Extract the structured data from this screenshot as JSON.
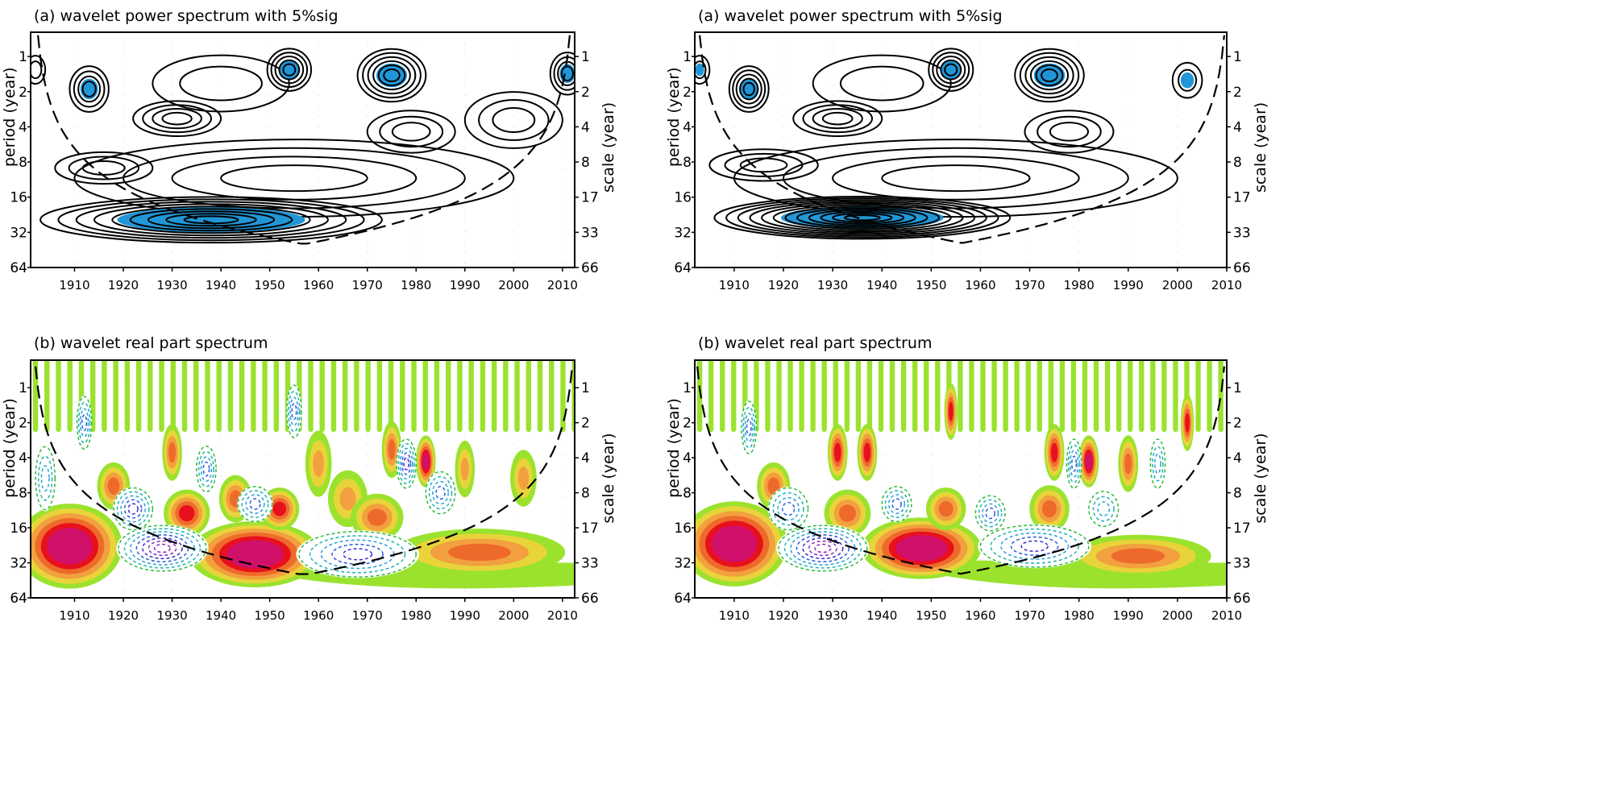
{
  "colors": {
    "significant": "#2196d6",
    "positive_levels": [
      "#9be22e",
      "#e8d43a",
      "#f2a040",
      "#ee6a2a",
      "#e8101c",
      "#d0106a"
    ],
    "negative_levels": [
      "#2dbb3a",
      "#1fb4b0",
      "#2aa0d8",
      "#2a5ae0",
      "#3a2ad0",
      "#8a2ac0"
    ],
    "contour": "#000000"
  },
  "chart_data": [
    {
      "id": "left-a",
      "type": "contour",
      "title": "(a) wavelet power spectrum with 5%sig",
      "ylabel": "period (year)",
      "ylabel_right": "scale (year)",
      "xlim": [
        1901,
        2012.5
      ],
      "ylim": [
        0.62,
        64
      ],
      "yscale": "log2",
      "x_ticks": [
        "1910",
        "1920",
        "1930",
        "1940",
        "1950",
        "1960",
        "1970",
        "1980",
        "1990",
        "2000",
        "2010"
      ],
      "y_ticks_left": [
        {
          "v": 1,
          "label": "1"
        },
        {
          "v": 2,
          "label": "2"
        },
        {
          "v": 4,
          "label": "4"
        },
        {
          "v": 8,
          "label": "8"
        },
        {
          "v": 16,
          "label": "16"
        },
        {
          "v": 32,
          "label": "32"
        },
        {
          "v": 64,
          "label": "64"
        }
      ],
      "y_ticks_right": [
        {
          "v": 1,
          "label": "1"
        },
        {
          "v": 2,
          "label": "2"
        },
        {
          "v": 4,
          "label": "4"
        },
        {
          "v": 8,
          "label": "8"
        },
        {
          "v": 16,
          "label": "17"
        },
        {
          "v": 32,
          "label": "33"
        },
        {
          "v": 64,
          "label": "66"
        }
      ],
      "coi": {
        "start": 1902.5,
        "end": 2011.5,
        "factor": 0.73
      },
      "features": [
        {
          "year": 1902,
          "period": 1.3,
          "wy": 4,
          "oct": 0.8,
          "levels": 2,
          "sig": 0
        },
        {
          "year": 1913,
          "period": 1.9,
          "wy": 8,
          "oct": 1.3,
          "levels": 4,
          "sig": 1
        },
        {
          "year": 1931,
          "period": 3.4,
          "wy": 18,
          "oct": 1.0,
          "levels": 4,
          "sig": 0
        },
        {
          "year": 1940,
          "period": 1.7,
          "wy": 28,
          "oct": 1.6,
          "levels": 2,
          "sig": 0
        },
        {
          "year": 1954,
          "period": 1.3,
          "wy": 9,
          "oct": 1.2,
          "levels": 5,
          "sig": 1
        },
        {
          "year": 1975,
          "period": 1.45,
          "wy": 14,
          "oct": 1.5,
          "levels": 6,
          "sig": 1
        },
        {
          "year": 1979,
          "period": 4.4,
          "wy": 18,
          "oct": 1.2,
          "levels": 3,
          "sig": 0
        },
        {
          "year": 2000,
          "period": 3.5,
          "wy": 20,
          "oct": 1.6,
          "levels": 3,
          "sig": 0
        },
        {
          "year": 2011,
          "period": 1.4,
          "wy": 7,
          "oct": 1.2,
          "levels": 4,
          "sig": 1
        },
        {
          "year": 1916,
          "period": 9,
          "wy": 20,
          "oct": 0.9,
          "levels": 3,
          "sig": 0
        },
        {
          "year": 1955,
          "period": 11,
          "wy": 90,
          "oct": 2.2,
          "levels": 4,
          "sig": 0
        },
        {
          "year": 1938,
          "period": 25,
          "wy": 70,
          "oct": 1.3,
          "levels": 9,
          "sig": 1
        }
      ]
    },
    {
      "id": "right-a",
      "type": "contour",
      "title": "(a) wavelet power spectrum with 5%sig",
      "ylabel": "period (year)",
      "ylabel_right": "scale (year)",
      "xlim": [
        1902,
        2010
      ],
      "ylim": [
        0.62,
        64
      ],
      "yscale": "log2",
      "x_ticks": [
        "1910",
        "1920",
        "1930",
        "1940",
        "1950",
        "1960",
        "1970",
        "1980",
        "1990",
        "2000",
        "2010"
      ],
      "y_ticks_left": [
        {
          "v": 1,
          "label": "1"
        },
        {
          "v": 2,
          "label": "2"
        },
        {
          "v": 4,
          "label": "4"
        },
        {
          "v": 8,
          "label": "8"
        },
        {
          "v": 16,
          "label": "16"
        },
        {
          "v": 32,
          "label": "32"
        },
        {
          "v": 64,
          "label": "64"
        }
      ],
      "y_ticks_right": [
        {
          "v": 1,
          "label": "1"
        },
        {
          "v": 2,
          "label": "2"
        },
        {
          "v": 4,
          "label": "4"
        },
        {
          "v": 8,
          "label": "8"
        },
        {
          "v": 16,
          "label": "17"
        },
        {
          "v": 32,
          "label": "33"
        },
        {
          "v": 64,
          "label": "66"
        }
      ],
      "coi": {
        "start": 1903,
        "end": 2009.5,
        "factor": 0.73
      },
      "features": [
        {
          "year": 1903,
          "period": 1.3,
          "wy": 4,
          "oct": 0.8,
          "levels": 2,
          "sig": 1
        },
        {
          "year": 1913,
          "period": 1.9,
          "wy": 8,
          "oct": 1.3,
          "levels": 5,
          "sig": 1
        },
        {
          "year": 1931,
          "period": 3.4,
          "wy": 18,
          "oct": 1.0,
          "levels": 4,
          "sig": 0
        },
        {
          "year": 1940,
          "period": 1.7,
          "wy": 28,
          "oct": 1.6,
          "levels": 2,
          "sig": 0
        },
        {
          "year": 1954,
          "period": 1.3,
          "wy": 9,
          "oct": 1.2,
          "levels": 5,
          "sig": 1
        },
        {
          "year": 1974,
          "period": 1.45,
          "wy": 14,
          "oct": 1.5,
          "levels": 6,
          "sig": 1
        },
        {
          "year": 1978,
          "period": 4.4,
          "wy": 18,
          "oct": 1.2,
          "levels": 3,
          "sig": 0
        },
        {
          "year": 2002,
          "period": 1.6,
          "wy": 6,
          "oct": 1.0,
          "levels": 2,
          "sig": 1
        },
        {
          "year": 1916,
          "period": 8.5,
          "wy": 22,
          "oct": 0.9,
          "levels": 3,
          "sig": 0
        },
        {
          "year": 1955,
          "period": 11,
          "wy": 90,
          "oct": 2.2,
          "levels": 4,
          "sig": 0
        },
        {
          "year": 1936,
          "period": 24,
          "wy": 60,
          "oct": 1.2,
          "levels": 12,
          "sig": 1
        }
      ]
    },
    {
      "id": "left-b",
      "type": "contour-real",
      "title": "(b) wavelet real part spectrum",
      "ylabel": "period (year)",
      "ylabel_right": "scale (year)",
      "xlim": [
        1901,
        2012.5
      ],
      "ylim": [
        0.58,
        64
      ],
      "yscale": "log2",
      "x_ticks": [
        "1910",
        "1920",
        "1930",
        "1940",
        "1950",
        "1960",
        "1970",
        "1980",
        "1990",
        "2000",
        "2010"
      ],
      "y_ticks_left": [
        {
          "v": 1,
          "label": "1"
        },
        {
          "v": 2,
          "label": "2"
        },
        {
          "v": 4,
          "label": "4"
        },
        {
          "v": 8,
          "label": "8"
        },
        {
          "v": 16,
          "label": "16"
        },
        {
          "v": 32,
          "label": "32"
        },
        {
          "v": 64,
          "label": "64"
        }
      ],
      "y_ticks_right": [
        {
          "v": 1,
          "label": "1"
        },
        {
          "v": 2,
          "label": "2"
        },
        {
          "v": 4,
          "label": "4"
        },
        {
          "v": 8,
          "label": "8"
        },
        {
          "v": 16,
          "label": "17"
        },
        {
          "v": 32,
          "label": "33"
        },
        {
          "v": 64,
          "label": "66"
        }
      ],
      "coi": {
        "start": 1902,
        "end": 2012,
        "factor": 0.73
      },
      "fingers": {
        "start": 1902,
        "spacing": 2.35,
        "to_period": 2.4
      },
      "features": [
        {
          "year": 1909,
          "period": 23,
          "wy": 16,
          "oct": 1.8,
          "amp": 6
        },
        {
          "year": 1947,
          "period": 27,
          "wy": 20,
          "oct": 1.4,
          "amp": 6
        },
        {
          "year": 1933,
          "period": 12,
          "wy": 7,
          "oct": 1.0,
          "amp": 4
        },
        {
          "year": 1952,
          "period": 11,
          "wy": 6,
          "oct": 0.9,
          "amp": 4
        },
        {
          "year": 1918,
          "period": 7,
          "wy": 5,
          "oct": 1.0,
          "amp": 3
        },
        {
          "year": 1930,
          "period": 3.6,
          "wy": 3,
          "oct": 1.2,
          "amp": 3
        },
        {
          "year": 1982,
          "period": 4.3,
          "wy": 3,
          "oct": 1.1,
          "amp": 5
        },
        {
          "year": 1975,
          "period": 3.4,
          "wy": 3,
          "oct": 1.2,
          "amp": 3
        },
        {
          "year": 1960,
          "period": 4.5,
          "wy": 4,
          "oct": 1.4,
          "amp": 2
        },
        {
          "year": 1966,
          "period": 9,
          "wy": 6,
          "oct": 1.2,
          "amp": 2
        },
        {
          "year": 1943,
          "period": 9,
          "wy": 5,
          "oct": 1.0,
          "amp": 3
        },
        {
          "year": 1993,
          "period": 26,
          "wy": 26,
          "oct": 1.0,
          "amp": 3
        },
        {
          "year": 1972,
          "period": 13,
          "wy": 8,
          "oct": 1.0,
          "amp": 3
        },
        {
          "year": 2002,
          "period": 6,
          "wy": 4,
          "oct": 1.2,
          "amp": 2
        },
        {
          "year": 1990,
          "period": 5,
          "wy": 3,
          "oct": 1.2,
          "amp": 2
        },
        {
          "year": 1928,
          "period": 24,
          "wy": 18,
          "oct": 1.3,
          "amp": -6
        },
        {
          "year": 1922,
          "period": 11,
          "wy": 8,
          "oct": 1.2,
          "amp": -4
        },
        {
          "year": 1968,
          "period": 27,
          "wy": 24,
          "oct": 1.3,
          "amp": -4
        },
        {
          "year": 1937,
          "period": 5,
          "wy": 4,
          "oct": 1.3,
          "amp": -3
        },
        {
          "year": 1978,
          "period": 4.5,
          "wy": 4,
          "oct": 1.4,
          "amp": -4
        },
        {
          "year": 1912,
          "period": 2,
          "wy": 3,
          "oct": 1.5,
          "amp": -3
        },
        {
          "year": 1955,
          "period": 1.6,
          "wy": 3,
          "oct": 1.5,
          "amp": -3
        },
        {
          "year": 1985,
          "period": 8,
          "wy": 6,
          "oct": 1.2,
          "amp": -3
        },
        {
          "year": 1947,
          "period": 10,
          "wy": 7,
          "oct": 1.0,
          "amp": -3
        },
        {
          "year": 1904,
          "period": 6,
          "wy": 4,
          "oct": 1.8,
          "amp": -2
        }
      ]
    },
    {
      "id": "right-b",
      "type": "contour-real",
      "title": "(b) wavelet real part spectrum",
      "ylabel": "period (year)",
      "ylabel_right": "scale (year)",
      "xlim": [
        1902,
        2010
      ],
      "ylim": [
        0.58,
        64
      ],
      "yscale": "log2",
      "x_ticks": [
        "1910",
        "1920",
        "1930",
        "1940",
        "1950",
        "1960",
        "1970",
        "1980",
        "1990",
        "2000",
        "2010"
      ],
      "y_ticks_left": [
        {
          "v": 1,
          "label": "1"
        },
        {
          "v": 2,
          "label": "2"
        },
        {
          "v": 4,
          "label": "4"
        },
        {
          "v": 8,
          "label": "8"
        },
        {
          "v": 16,
          "label": "16"
        },
        {
          "v": 32,
          "label": "32"
        },
        {
          "v": 64,
          "label": "64"
        }
      ],
      "y_ticks_right": [
        {
          "v": 1,
          "label": "1"
        },
        {
          "v": 2,
          "label": "2"
        },
        {
          "v": 4,
          "label": "4"
        },
        {
          "v": 8,
          "label": "8"
        },
        {
          "v": 16,
          "label": "17"
        },
        {
          "v": 32,
          "label": "33"
        },
        {
          "v": 64,
          "label": "66"
        }
      ],
      "coi": {
        "start": 1902.5,
        "end": 2009.5,
        "factor": 0.73
      },
      "fingers": {
        "start": 1903,
        "spacing": 2.3,
        "to_period": 2.4
      },
      "features": [
        {
          "year": 1910,
          "period": 22,
          "wy": 16,
          "oct": 1.8,
          "amp": 6
        },
        {
          "year": 1948,
          "period": 24,
          "wy": 18,
          "oct": 1.3,
          "amp": 6
        },
        {
          "year": 1933,
          "period": 12,
          "wy": 7,
          "oct": 1.0,
          "amp": 3
        },
        {
          "year": 1953,
          "period": 11,
          "wy": 6,
          "oct": 0.9,
          "amp": 3
        },
        {
          "year": 1918,
          "period": 7,
          "wy": 5,
          "oct": 1.0,
          "amp": 3
        },
        {
          "year": 1931,
          "period": 3.6,
          "wy": 3,
          "oct": 1.2,
          "amp": 4
        },
        {
          "year": 1982,
          "period": 4.3,
          "wy": 3,
          "oct": 1.1,
          "amp": 5
        },
        {
          "year": 1975,
          "period": 3.6,
          "wy": 3,
          "oct": 1.2,
          "amp": 4
        },
        {
          "year": 1937,
          "period": 3.6,
          "wy": 3,
          "oct": 1.2,
          "amp": 4
        },
        {
          "year": 1954,
          "period": 1.6,
          "wy": 2,
          "oct": 1.2,
          "amp": 4
        },
        {
          "year": 1974,
          "period": 11,
          "wy": 6,
          "oct": 1.0,
          "amp": 3
        },
        {
          "year": 1992,
          "period": 28,
          "wy": 22,
          "oct": 0.9,
          "amp": 3
        },
        {
          "year": 1990,
          "period": 4.5,
          "wy": 3,
          "oct": 1.2,
          "amp": 3
        },
        {
          "year": 2002,
          "period": 2,
          "wy": 2,
          "oct": 1.2,
          "amp": 4
        },
        {
          "year": 1928,
          "period": 24,
          "wy": 18,
          "oct": 1.3,
          "amp": -6
        },
        {
          "year": 1921,
          "period": 11,
          "wy": 8,
          "oct": 1.2,
          "amp": -3
        },
        {
          "year": 1971,
          "period": 23,
          "wy": 22,
          "oct": 1.2,
          "amp": -4
        },
        {
          "year": 1943,
          "period": 10,
          "wy": 6,
          "oct": 1.0,
          "amp": -3
        },
        {
          "year": 1962,
          "period": 12,
          "wy": 6,
          "oct": 1.0,
          "amp": -3
        },
        {
          "year": 1985,
          "period": 11,
          "wy": 6,
          "oct": 1.0,
          "amp": -2
        },
        {
          "year": 1913,
          "period": 2.2,
          "wy": 3,
          "oct": 1.5,
          "amp": -3
        },
        {
          "year": 1979,
          "period": 4.5,
          "wy": 3,
          "oct": 1.4,
          "amp": -3
        },
        {
          "year": 1996,
          "period": 4.5,
          "wy": 3,
          "oct": 1.4,
          "amp": -2
        }
      ]
    }
  ]
}
